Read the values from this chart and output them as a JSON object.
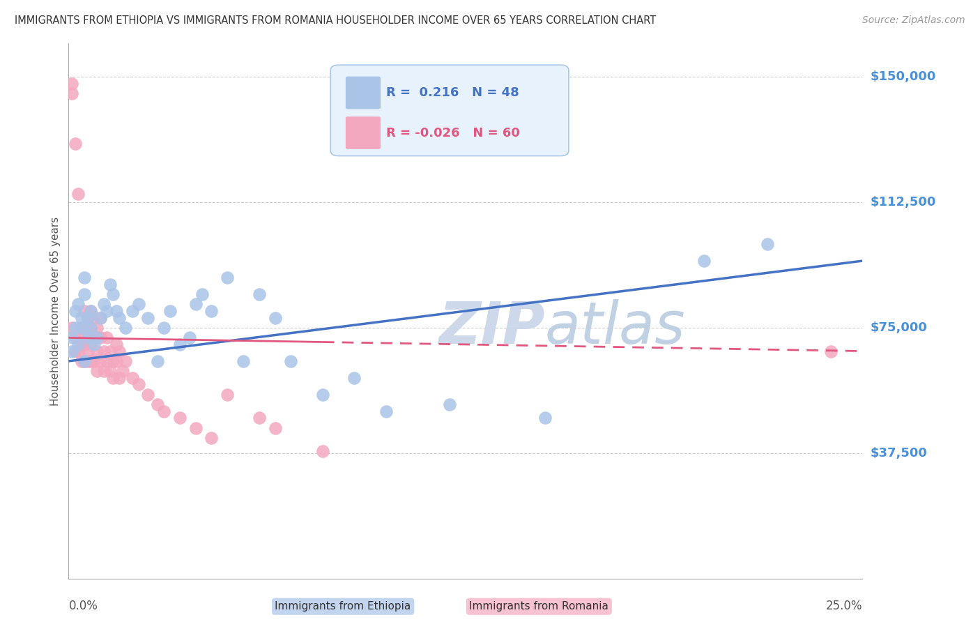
{
  "title": "IMMIGRANTS FROM ETHIOPIA VS IMMIGRANTS FROM ROMANIA HOUSEHOLDER INCOME OVER 65 YEARS CORRELATION CHART",
  "source": "Source: ZipAtlas.com",
  "ylabel": "Householder Income Over 65 years",
  "xlim": [
    0.0,
    0.25
  ],
  "ylim": [
    0,
    160000
  ],
  "yticks": [
    0,
    37500,
    75000,
    112500,
    150000
  ],
  "ytick_labels": [
    "",
    "$37,500",
    "$75,000",
    "$112,500",
    "$150,000"
  ],
  "xtick_labels_show": [
    "0.0%",
    "25.0%"
  ],
  "ethiopia_R": 0.216,
  "ethiopia_N": 48,
  "romania_R": -0.026,
  "romania_N": 60,
  "ethiopia_color": "#aac4e8",
  "ethiopia_line_color": "#4472c4",
  "romania_color": "#f4a8c0",
  "romania_line_color": "#e05880",
  "watermark": "ZIP atlas",
  "watermark_color": "#d5dff0",
  "background_color": "#ffffff",
  "grid_color": "#cccccc",
  "title_color": "#333333",
  "axis_label_color": "#555555",
  "ytick_label_color": "#4a90d9",
  "legend_box_color": "#e8f2fc",
  "legend_border_color": "#aac8e8",
  "ethiopia_x": [
    0.001,
    0.001,
    0.002,
    0.002,
    0.003,
    0.003,
    0.004,
    0.004,
    0.005,
    0.005,
    0.005,
    0.006,
    0.006,
    0.007,
    0.007,
    0.008,
    0.009,
    0.01,
    0.011,
    0.012,
    0.013,
    0.014,
    0.015,
    0.016,
    0.018,
    0.02,
    0.022,
    0.025,
    0.028,
    0.03,
    0.032,
    0.035,
    0.038,
    0.04,
    0.042,
    0.045,
    0.05,
    0.055,
    0.06,
    0.065,
    0.07,
    0.08,
    0.09,
    0.1,
    0.12,
    0.15,
    0.2,
    0.22
  ],
  "ethiopia_y": [
    72000,
    68000,
    75000,
    80000,
    70000,
    82000,
    75000,
    78000,
    85000,
    65000,
    90000,
    72000,
    78000,
    80000,
    75000,
    70000,
    72000,
    78000,
    82000,
    80000,
    88000,
    85000,
    80000,
    78000,
    75000,
    80000,
    82000,
    78000,
    65000,
    75000,
    80000,
    70000,
    72000,
    82000,
    85000,
    80000,
    90000,
    65000,
    85000,
    78000,
    65000,
    55000,
    60000,
    50000,
    52000,
    48000,
    95000,
    100000
  ],
  "romania_x": [
    0.001,
    0.001,
    0.001,
    0.002,
    0.002,
    0.002,
    0.003,
    0.003,
    0.003,
    0.004,
    0.004,
    0.004,
    0.005,
    0.005,
    0.005,
    0.005,
    0.006,
    0.006,
    0.006,
    0.006,
    0.007,
    0.007,
    0.007,
    0.007,
    0.008,
    0.008,
    0.008,
    0.009,
    0.009,
    0.009,
    0.01,
    0.01,
    0.01,
    0.011,
    0.011,
    0.012,
    0.012,
    0.013,
    0.013,
    0.014,
    0.014,
    0.015,
    0.015,
    0.016,
    0.016,
    0.017,
    0.018,
    0.02,
    0.022,
    0.025,
    0.028,
    0.03,
    0.035,
    0.04,
    0.045,
    0.05,
    0.06,
    0.065,
    0.08,
    0.24
  ],
  "romania_y": [
    148000,
    145000,
    75000,
    130000,
    68000,
    72000,
    115000,
    72000,
    68000,
    75000,
    70000,
    65000,
    80000,
    75000,
    70000,
    65000,
    78000,
    72000,
    68000,
    65000,
    80000,
    75000,
    70000,
    65000,
    78000,
    72000,
    65000,
    75000,
    68000,
    62000,
    78000,
    72000,
    65000,
    68000,
    62000,
    72000,
    65000,
    68000,
    62000,
    65000,
    60000,
    70000,
    65000,
    68000,
    60000,
    62000,
    65000,
    60000,
    58000,
    55000,
    52000,
    50000,
    48000,
    45000,
    42000,
    55000,
    48000,
    45000,
    38000,
    68000
  ]
}
